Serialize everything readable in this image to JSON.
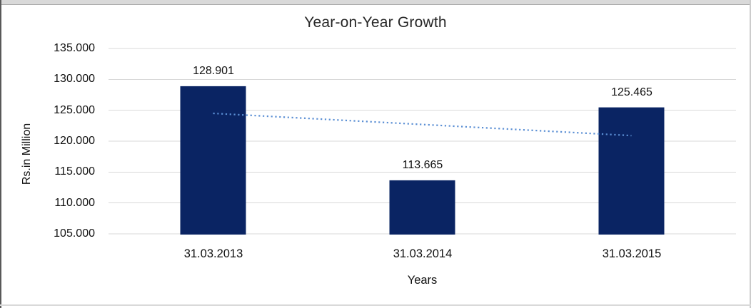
{
  "chart_data": {
    "type": "bar",
    "title": "Year-on-Year Growth",
    "xlabel": "Years",
    "ylabel": "Rs.in Million",
    "categories": [
      "31.03.2013",
      "31.03.2014",
      "31.03.2015"
    ],
    "values": [
      128.901,
      113.665,
      125.465
    ],
    "value_labels": [
      "128.901",
      "113.665",
      "125.465"
    ],
    "y_ticks": [
      105,
      110,
      115,
      120,
      125,
      130,
      135
    ],
    "y_tick_labels": [
      "105.000",
      "110.000",
      "115.000",
      "120.000",
      "125.000",
      "130.000",
      "135.000"
    ],
    "ylim": [
      105,
      135
    ],
    "grid": "horizontal",
    "gridline_color": "#d9d9d9",
    "legend": "none",
    "bar_color": "#0a2463",
    "trendline": {
      "type": "linear",
      "style": "dotted",
      "color": "#5b8fd4",
      "start_value": 124.5,
      "end_value": 120.9
    }
  }
}
